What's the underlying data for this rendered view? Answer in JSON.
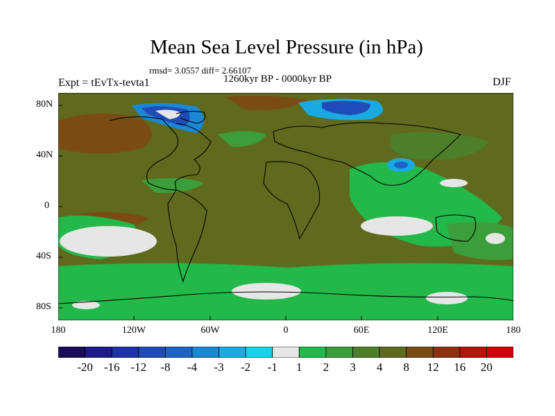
{
  "chart_data": {
    "type": "heatmap",
    "title": "Mean Sea Level Pressure (in hPa)",
    "stats_label": "rmsd= 3.0557 diff= 2.66107",
    "period_label": "1260kyr BP - 0000kyr BP",
    "experiment_label": "Expt = tEvTx-tevta1",
    "season_label": "DJF",
    "x_ticks": [
      "180",
      "120W",
      "60W",
      "0",
      "60E",
      "120E",
      "180"
    ],
    "y_ticks": [
      "80N",
      "40N",
      "0",
      "40S",
      "80S"
    ],
    "x_range": [
      -180,
      180
    ],
    "y_range": [
      -90,
      90
    ],
    "colorbar": {
      "labels": [
        "-20",
        "-16",
        "-12",
        "-8",
        "-4",
        "-3",
        "-2",
        "-1",
        "1",
        "2",
        "3",
        "4",
        "8",
        "12",
        "16",
        "20"
      ],
      "colors": [
        "#1a0a5a",
        "#1e1a8c",
        "#1f32a8",
        "#1f4cb8",
        "#1b64c4",
        "#1a88d4",
        "#1aaae2",
        "#16d2ee",
        "#e6e6e6",
        "#23b84a",
        "#3b9e3a",
        "#4d7e2a",
        "#5f6a1e",
        "#7a4c14",
        "#8f2e0e",
        "#b0160c",
        "#d0000a"
      ]
    }
  }
}
